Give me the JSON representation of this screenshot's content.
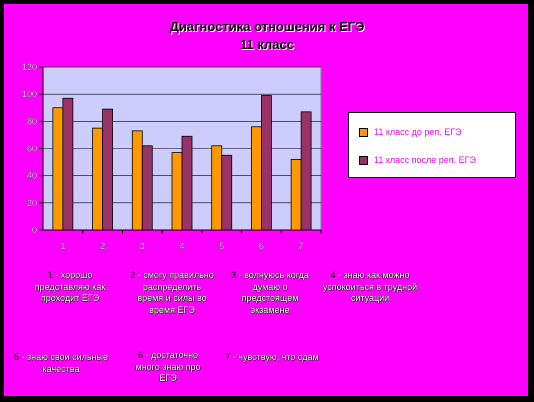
{
  "title_line1": "Диагностика отношения к ЕГЭ",
  "title_line2": "11 класс",
  "chart_data": {
    "type": "bar",
    "categories": [
      "1",
      "2",
      "3",
      "4",
      "5",
      "6",
      "7"
    ],
    "series": [
      {
        "name": "11 класс до реп. ЕГЭ",
        "values": [
          90,
          75,
          73,
          57,
          62,
          76,
          52
        ],
        "color": "#ff9900"
      },
      {
        "name": "11 класс после реп. ЕГЭ",
        "values": [
          97,
          89,
          62,
          69,
          55,
          99,
          87
        ],
        "color": "#993366"
      }
    ],
    "yticks": [
      "0",
      "20",
      "40",
      "60",
      "80",
      "100",
      "120"
    ],
    "ylim": [
      0,
      120
    ],
    "grid": true,
    "legend": "right",
    "plot_bg": "#ccccff"
  },
  "captions": [
    {
      "num": "1",
      "text": " - хорошо представляю как проходит ЕГЭ"
    },
    {
      "num": "2",
      "text": " - смогу правильно распределить время и силы во время ЕГЭ"
    },
    {
      "num": "3",
      "text": " - волнуюсь когда думаю о предстоящем экзамене"
    },
    {
      "num": "4",
      "text": " - знаю как можно успокоиться в трудной ситуации"
    },
    {
      "num": "5",
      "text": " - знаю свои сильные качества"
    },
    {
      "num": "6",
      "text": " - достаточно много знаю про ЕГЭ"
    },
    {
      "num": "7",
      "text": " - чувствую, что сдам"
    }
  ]
}
